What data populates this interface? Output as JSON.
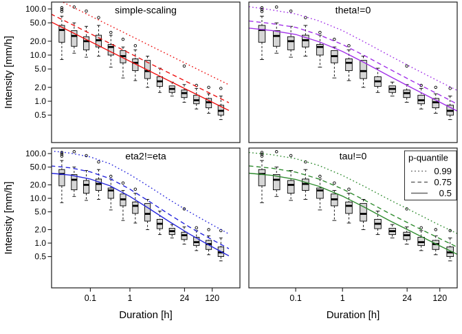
{
  "figure": {
    "xlabel": "Duration [h]",
    "ylabel": "Intensity [mm/h]"
  },
  "axes": {
    "x_tick_values": [
      0.1,
      1,
      24,
      120
    ],
    "x_tick_labels": [
      "0.1",
      "1",
      "24",
      "120"
    ],
    "y_tick_values": [
      100,
      50,
      20,
      10,
      5,
      2,
      1,
      0.5
    ],
    "y_tick_labels": [
      "100.0",
      "50.0",
      "20.0",
      "10.0",
      "5.0",
      "2.0",
      "1.0",
      "0.5"
    ]
  },
  "legend": {
    "title": "p-quantile",
    "line_color": "#666666",
    "entries": [
      {
        "label": "0.99",
        "style": "dotted"
      },
      {
        "label": "0.75",
        "style": "dashed"
      },
      {
        "label": "0.5",
        "style": "solid"
      }
    ]
  },
  "chart_data": {
    "type": "boxplot+line grid (2x2), log-log IDF curves",
    "log_x": true,
    "log_y": true,
    "x_unit": "h",
    "y_unit": "mm/h",
    "x_ticks": [
      0.1,
      1,
      24,
      120
    ],
    "y_ticks": [
      100,
      50,
      20,
      10,
      5,
      2,
      1,
      0.5
    ],
    "curve_x_log10": [
      -2,
      -1.5,
      -1,
      -0.5,
      0,
      0.5,
      1,
      1.5,
      2,
      2.5
    ],
    "panels": [
      {
        "title": "simple-scaling",
        "color": "#ee1111",
        "row": 0,
        "col": 0,
        "q99": [
          191,
          116,
          71,
          43.2,
          26.5,
          16.2,
          9.9,
          6.05,
          3.7,
          2.27
        ],
        "q75": [
          78,
          47.8,
          29.1,
          17.8,
          10.9,
          6.6,
          4.07,
          2.49,
          1.52,
          0.93
        ],
        "q50": [
          53,
          32.3,
          19.7,
          12,
          7.35,
          4.49,
          2.75,
          1.68,
          1.03,
          0.63
        ]
      },
      {
        "title": "theta!=0",
        "color": "#a130e8",
        "row": 0,
        "col": 1,
        "q99": [
          112,
          95,
          78,
          55,
          34,
          18.5,
          9.8,
          5.3,
          2.9,
          1.62
        ],
        "q75": [
          55,
          48,
          40,
          27.5,
          17,
          9.4,
          5.0,
          2.7,
          1.5,
          0.82
        ],
        "q50": [
          38.5,
          34,
          28,
          19.5,
          12,
          6.6,
          3.5,
          1.9,
          1.05,
          0.58
        ]
      },
      {
        "title": "eta2!=eta",
        "color": "#2525dd",
        "row": 1,
        "col": 0,
        "q99": [
          115,
          102,
          84,
          59,
          34,
          18,
          9.3,
          5.0,
          2.8,
          1.6
        ],
        "q75": [
          53,
          48,
          39,
          27.5,
          16,
          8.4,
          4.35,
          2.3,
          1.3,
          0.75
        ],
        "q50": [
          36.5,
          33,
          27,
          19,
          11,
          5.8,
          3.0,
          1.6,
          0.9,
          0.52
        ]
      },
      {
        "title": "tau!=0",
        "color": "#2e8b2e",
        "row": 1,
        "col": 1,
        "q99": [
          106,
          94,
          77,
          54,
          32.5,
          17.7,
          9.3,
          5.1,
          2.75,
          1.54
        ],
        "q75": [
          53,
          47,
          38.5,
          27,
          16.2,
          8.8,
          4.6,
          2.5,
          1.38,
          0.77
        ],
        "q50": [
          36.5,
          32.5,
          26.5,
          18.5,
          11.2,
          6.1,
          3.2,
          1.75,
          0.95,
          0.53
        ]
      }
    ],
    "boxplots": {
      "note": "same observed sample boxplots repeated in all four panels",
      "durations_h": [
        0.019,
        0.039,
        0.079,
        0.162,
        0.33,
        0.67,
        1.37,
        2.79,
        5.68,
        11.6,
        23.6,
        48,
        98,
        199
      ],
      "whisker_low": [
        8,
        11,
        9,
        9.5,
        5.5,
        3.2,
        2.8,
        2.0,
        1.55,
        1.3,
        0.95,
        0.68,
        0.55,
        0.4
      ],
      "q1": [
        19,
        15.5,
        13,
        15,
        10,
        6.8,
        4.6,
        3.1,
        2.1,
        1.55,
        1.2,
        0.88,
        0.72,
        0.5
      ],
      "median": [
        35,
        26,
        20,
        21,
        15,
        9.5,
        6.8,
        4.5,
        2.7,
        1.85,
        1.5,
        1.05,
        0.95,
        0.62
      ],
      "q3": [
        44,
        34,
        25,
        27,
        17,
        12.5,
        8.3,
        7.7,
        3.4,
        2.15,
        1.75,
        1.35,
        1.15,
        0.82
      ],
      "whisker_high": [
        70,
        50,
        42,
        44,
        27,
        15,
        13,
        9.5,
        5.2,
        2.6,
        2.3,
        1.9,
        1.45,
        1.3
      ],
      "outliers": [
        [
          88,
          97,
          106
        ],
        [
          110
        ],
        [
          90
        ],
        [
          65
        ],
        [
          31
        ],
        [
          22
        ],
        [
          16
        ],
        [],
        [],
        [],
        [
          5.8
        ],
        [
          2.2
        ],
        [
          2.0
        ],
        [
          1.9
        ]
      ],
      "box_fill": "#d6d6d6",
      "box_stroke": "#000000"
    }
  }
}
